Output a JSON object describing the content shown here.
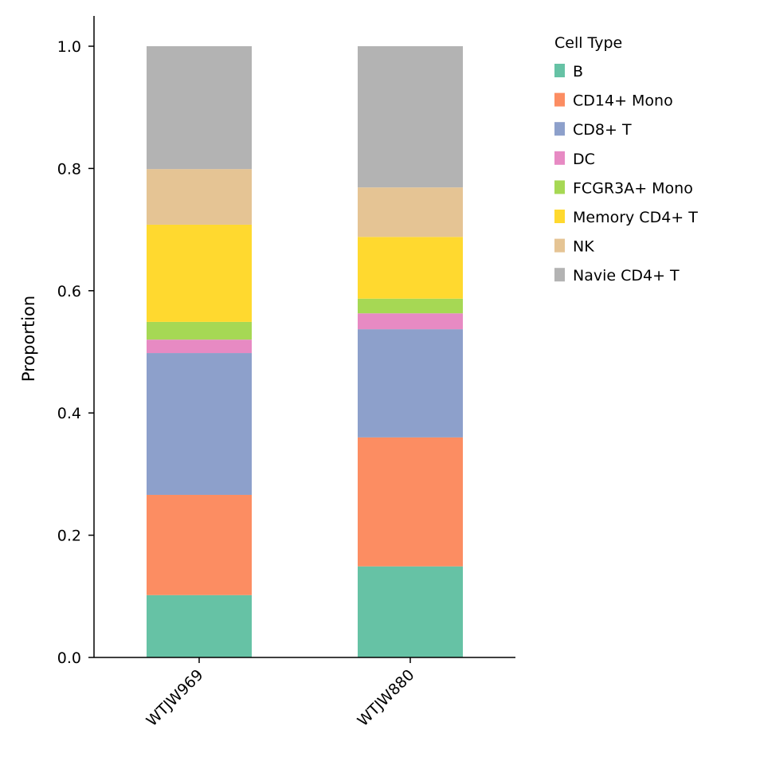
{
  "chart_data": {
    "type": "bar",
    "stacked": true,
    "title": "",
    "xlabel": "",
    "ylabel": "Proportion",
    "ylim": [
      0,
      1.05
    ],
    "yticks": [
      "0.0",
      "0.2",
      "0.4",
      "0.6",
      "0.8",
      "1.0"
    ],
    "categories": [
      "WTJW969",
      "WTJW880"
    ],
    "legend_title": "Cell Type",
    "legend_placement": "outside-top-right",
    "series": [
      {
        "name": "B",
        "color": "#66c2a5",
        "values": [
          0.102,
          0.149
        ]
      },
      {
        "name": "CD14+ Mono",
        "color": "#fc8d62",
        "values": [
          0.164,
          0.211
        ]
      },
      {
        "name": "CD8+ T",
        "color": "#8da0cb",
        "values": [
          0.232,
          0.177
        ]
      },
      {
        "name": "DC",
        "color": "#e78ac3",
        "values": [
          0.022,
          0.026
        ]
      },
      {
        "name": "FCGR3A+ Mono",
        "color": "#a6d854",
        "values": [
          0.029,
          0.024
        ]
      },
      {
        "name": "Memory CD4+ T",
        "color": "#ffd92f",
        "values": [
          0.159,
          0.101
        ]
      },
      {
        "name": "NK",
        "color": "#e5c494",
        "values": [
          0.091,
          0.081
        ]
      },
      {
        "name": "Navie CD4+ T",
        "color": "#b3b3b3",
        "values": [
          0.201,
          0.231
        ]
      }
    ]
  }
}
